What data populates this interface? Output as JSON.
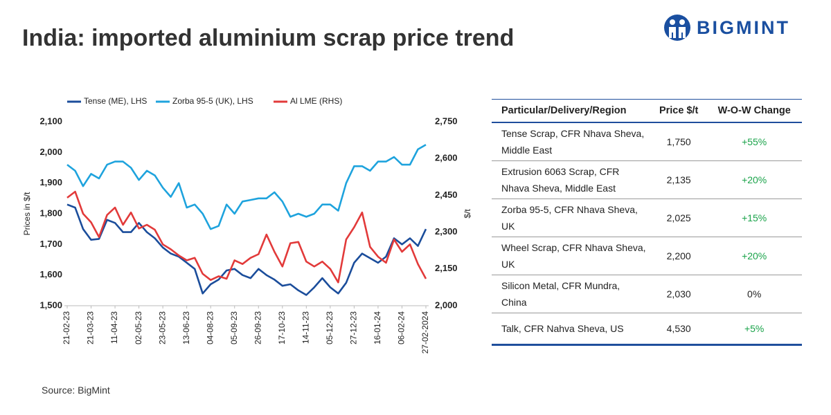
{
  "chart_data": {
    "type": "line",
    "title": "India: imported aluminium scrap price trend",
    "y_label": "Prices in $/t",
    "y2_label": "$/t",
    "categories": [
      "21-02-23",
      null,
      null,
      "21-03-23",
      null,
      null,
      "11-04-23",
      null,
      null,
      "02-05-23",
      null,
      null,
      "23-05-23",
      null,
      null,
      "13-06-23",
      null,
      null,
      "04-08-23",
      null,
      null,
      "05-09-23",
      null,
      null,
      "26-09-23",
      null,
      null,
      "17-10-23",
      null,
      null,
      "14-11-23",
      null,
      null,
      "05-12-23",
      null,
      null,
      "27-12-23",
      null,
      null,
      "16-01-24",
      null,
      null,
      "06-02-24",
      null,
      null,
      "27-02-2024"
    ],
    "series": [
      {
        "name": "Tense (ME), LHS",
        "color": "#1b4d9b",
        "axis": "y",
        "values": [
          1830,
          1820,
          1750,
          1715,
          1718,
          1780,
          1770,
          1740,
          1740,
          1770,
          1740,
          1720,
          1690,
          1670,
          1660,
          1640,
          1620,
          1540,
          1570,
          1585,
          1615,
          1620,
          1600,
          1590,
          1620,
          1600,
          1585,
          1565,
          1570,
          1550,
          1535,
          1560,
          1590,
          1560,
          1540,
          1575,
          1640,
          1670,
          1655,
          1640,
          1660,
          1720,
          1700,
          1720,
          1695,
          1750
        ]
      },
      {
        "name": "Zorba 95-5 (UK), LHS",
        "color": "#1ea3dd",
        "axis": "y",
        "values": [
          1960,
          1940,
          1890,
          1930,
          1915,
          1960,
          1970,
          1970,
          1950,
          1910,
          1940,
          1925,
          1885,
          1855,
          1900,
          1820,
          1830,
          1800,
          1750,
          1760,
          1830,
          1800,
          1840,
          1845,
          1850,
          1850,
          1870,
          1840,
          1790,
          1800,
          1790,
          1800,
          1830,
          1830,
          1810,
          1900,
          1955,
          1955,
          1940,
          1970,
          1970,
          1985,
          1960,
          1960,
          2010,
          2025
        ]
      },
      {
        "name": "Al LME (RHS)",
        "color": "#e23a3a",
        "axis": "y2",
        "values": [
          2440,
          2465,
          2375,
          2340,
          2280,
          2370,
          2400,
          2330,
          2380,
          2315,
          2330,
          2310,
          2250,
          2230,
          2205,
          2185,
          2195,
          2130,
          2105,
          2120,
          2110,
          2185,
          2170,
          2195,
          2210,
          2290,
          2220,
          2160,
          2255,
          2260,
          2180,
          2160,
          2180,
          2150,
          2095,
          2270,
          2320,
          2380,
          2240,
          2200,
          2175,
          2270,
          2220,
          2250,
          2170,
          2110
        ]
      }
    ],
    "ylim": [
      1500,
      2100
    ],
    "yticks": [
      {
        "value": 1500,
        "label": "1,500"
      },
      {
        "value": 1600,
        "label": "1,600"
      },
      {
        "value": 1700,
        "label": "1,700"
      },
      {
        "value": 1800,
        "label": "1,800"
      },
      {
        "value": 1900,
        "label": "1,900"
      },
      {
        "value": 2000,
        "label": "2,000"
      },
      {
        "value": 2100,
        "label": "2,100"
      }
    ],
    "y2lim": [
      2000,
      2750
    ],
    "y2ticks": [
      {
        "value": 2000,
        "label": "2,000"
      },
      {
        "value": 2150,
        "label": "2,150"
      },
      {
        "value": 2300,
        "label": "2,300"
      },
      {
        "value": 2450,
        "label": "2,450"
      },
      {
        "value": 2600,
        "label": "2,600"
      },
      {
        "value": 2750,
        "label": "2,750"
      }
    ],
    "grid": false,
    "legend": "top"
  },
  "logo": "BIGMINT",
  "source": "Source: BigMint",
  "table": {
    "columns": [
      "Particular/Delivery/Region",
      "Price $/t",
      "W-O-W Change"
    ],
    "rows": [
      [
        "Tense Scrap, CFR Nhava Sheva, Middle East",
        "1,750",
        "+55%"
      ],
      [
        "Extrusion 6063 Scrap, CFR Nhava Sheva, Middle East",
        "2,135",
        "+20%"
      ],
      [
        "Zorba 95-5, CFR Nhava Sheva, UK",
        "2,025",
        "+15%"
      ],
      [
        "Wheel Scrap, CFR Nhava Sheva, UK",
        "2,200",
        "+20%"
      ],
      [
        "Silicon Metal, CFR Mundra, China",
        "2,030",
        "0%"
      ],
      [
        "Talk, CFR Nahva Sheva, US",
        "4,530",
        "+5%"
      ]
    ]
  }
}
